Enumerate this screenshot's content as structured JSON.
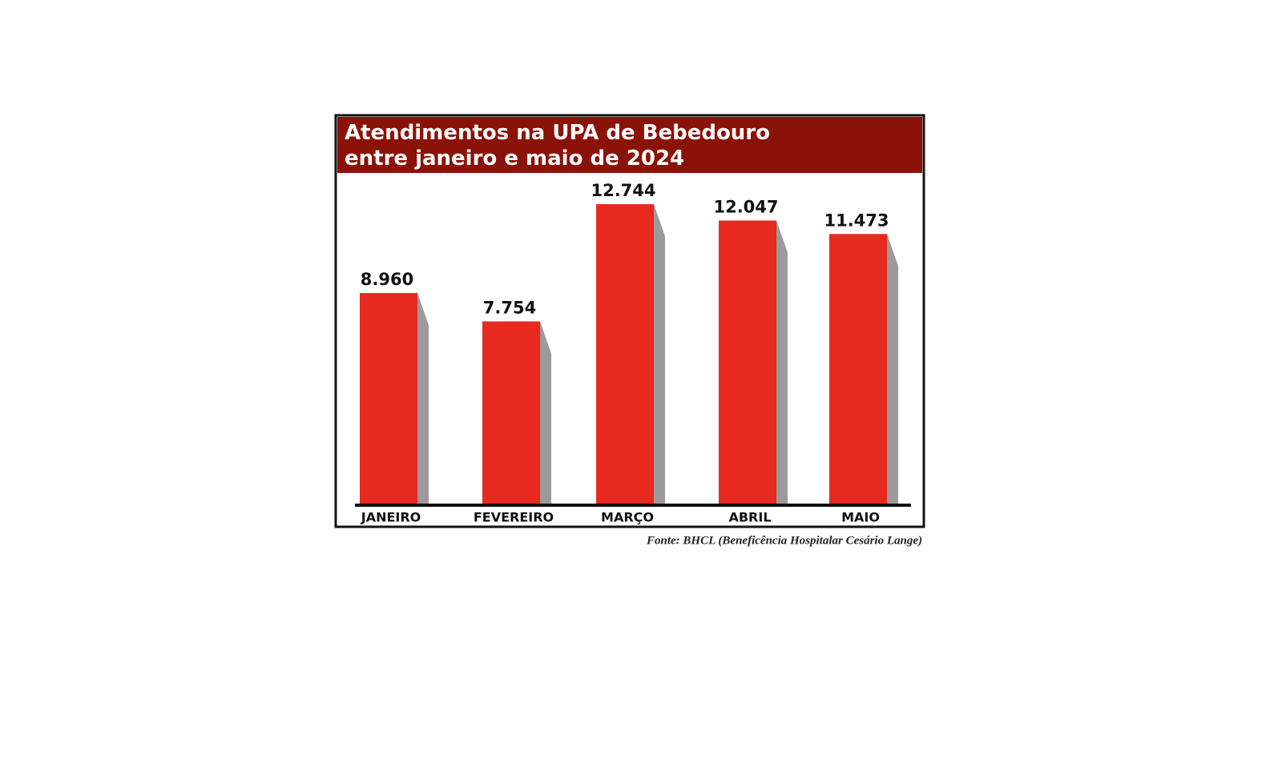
{
  "chart_data": {
    "type": "bar",
    "title": [
      "Atendimentos na UPA de Bebedouro",
      "entre janeiro e maio de 2024"
    ],
    "categories": [
      "JANEIRO",
      "FEVEREIRO",
      "MARÇO",
      "ABRIL",
      "MAIO"
    ],
    "values": [
      8960,
      7754,
      12744,
      12047,
      11473
    ],
    "value_labels": [
      "8.960",
      "7.754",
      "12.744",
      "12.047",
      "11.473"
    ],
    "color": "#e8291f",
    "source": "Fonte: BHCL (Beneficência Hospitalar Cesário Lange)"
  }
}
